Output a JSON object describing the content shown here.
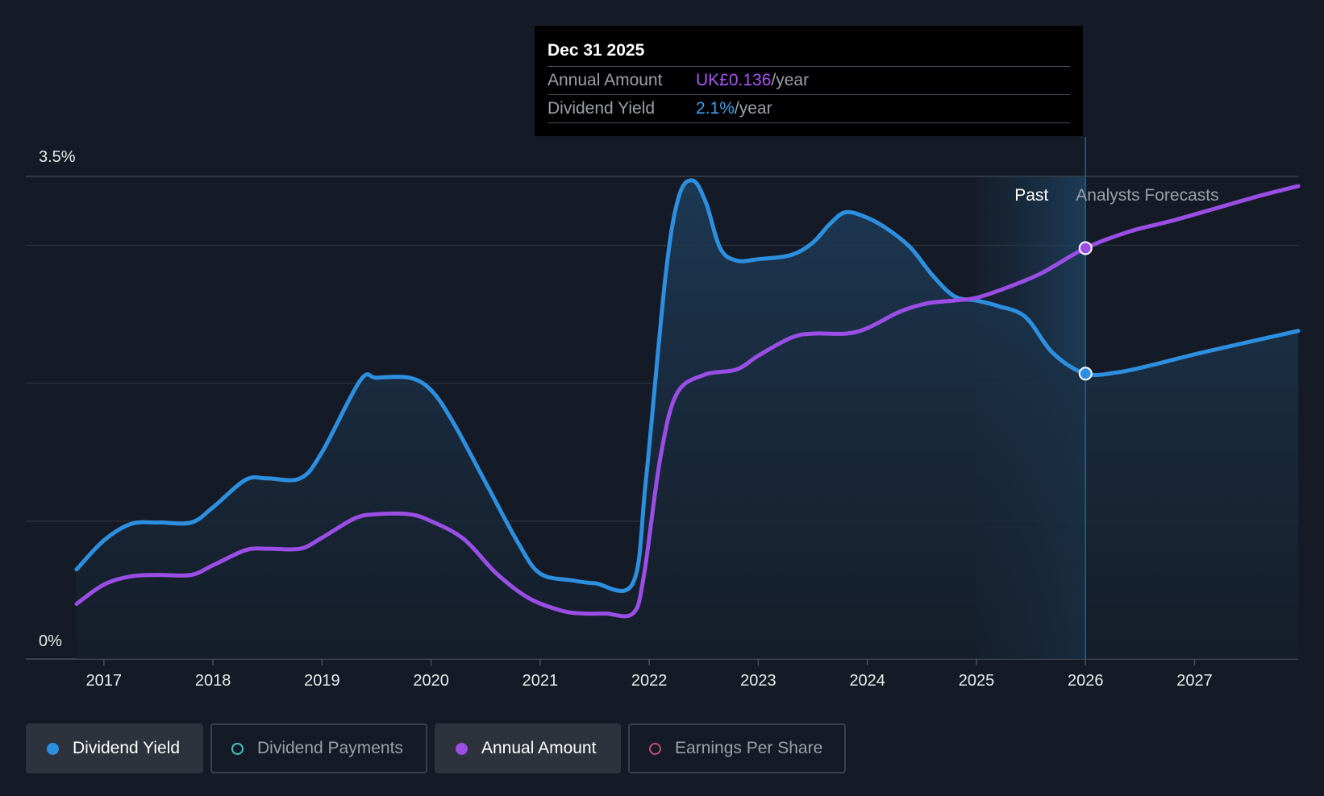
{
  "chart_data": {
    "type": "line",
    "title": "",
    "y_axis": {
      "top_label": "3.5%",
      "bottom_label": "0%",
      "range": [
        0,
        3.5
      ]
    },
    "x_axis": {
      "range": [
        2016.75,
        2027.95
      ],
      "tick_labels": [
        "2017",
        "2018",
        "2019",
        "2020",
        "2021",
        "2022",
        "2023",
        "2024",
        "2025",
        "2026",
        "2027"
      ],
      "tick_values": [
        2017,
        2018,
        2019,
        2020,
        2021,
        2022,
        2023,
        2024,
        2025,
        2026,
        2027
      ]
    },
    "regions": {
      "past_label": "Past",
      "forecast_label": "Analysts Forecasts",
      "past_start": 2025.0,
      "divider": 2026.0
    },
    "series": [
      {
        "name": "Dividend Yield",
        "color": "#2d8fe0",
        "fill": true,
        "points": [
          [
            2016.75,
            0.65
          ],
          [
            2017.0,
            0.86
          ],
          [
            2017.25,
            0.98
          ],
          [
            2017.5,
            0.99
          ],
          [
            2017.8,
            0.99
          ],
          [
            2018.0,
            1.1
          ],
          [
            2018.3,
            1.3
          ],
          [
            2018.5,
            1.31
          ],
          [
            2018.8,
            1.31
          ],
          [
            2019.0,
            1.5
          ],
          [
            2019.35,
            2.02
          ],
          [
            2019.5,
            2.04
          ],
          [
            2019.8,
            2.04
          ],
          [
            2020.0,
            1.95
          ],
          [
            2020.2,
            1.72
          ],
          [
            2020.5,
            1.28
          ],
          [
            2020.8,
            0.84
          ],
          [
            2021.0,
            0.62
          ],
          [
            2021.3,
            0.57
          ],
          [
            2021.5,
            0.55
          ],
          [
            2021.85,
            0.55
          ],
          [
            2021.97,
            1.3
          ],
          [
            2022.15,
            2.78
          ],
          [
            2022.27,
            3.35
          ],
          [
            2022.4,
            3.47
          ],
          [
            2022.52,
            3.31
          ],
          [
            2022.65,
            2.98
          ],
          [
            2022.8,
            2.89
          ],
          [
            2023.0,
            2.9
          ],
          [
            2023.3,
            2.93
          ],
          [
            2023.5,
            3.02
          ],
          [
            2023.65,
            3.15
          ],
          [
            2023.8,
            3.24
          ],
          [
            2024.0,
            3.2
          ],
          [
            2024.2,
            3.11
          ],
          [
            2024.4,
            2.98
          ],
          [
            2024.6,
            2.78
          ],
          [
            2024.8,
            2.63
          ],
          [
            2025.0,
            2.6
          ],
          [
            2025.2,
            2.56
          ],
          [
            2025.45,
            2.48
          ],
          [
            2025.7,
            2.22
          ],
          [
            2026.0,
            2.07
          ],
          [
            2026.3,
            2.08
          ],
          [
            2026.6,
            2.13
          ],
          [
            2027.0,
            2.21
          ],
          [
            2027.5,
            2.3
          ],
          [
            2027.95,
            2.38
          ]
        ]
      },
      {
        "name": "Annual Amount",
        "color": "#9b4ee6",
        "fill": false,
        "points": [
          [
            2016.75,
            0.4
          ],
          [
            2017.0,
            0.54
          ],
          [
            2017.25,
            0.6
          ],
          [
            2017.5,
            0.61
          ],
          [
            2017.8,
            0.61
          ],
          [
            2018.0,
            0.68
          ],
          [
            2018.3,
            0.79
          ],
          [
            2018.5,
            0.8
          ],
          [
            2018.8,
            0.8
          ],
          [
            2019.0,
            0.88
          ],
          [
            2019.3,
            1.02
          ],
          [
            2019.5,
            1.05
          ],
          [
            2019.8,
            1.05
          ],
          [
            2020.0,
            1.0
          ],
          [
            2020.3,
            0.87
          ],
          [
            2020.6,
            0.62
          ],
          [
            2020.9,
            0.44
          ],
          [
            2021.2,
            0.35
          ],
          [
            2021.4,
            0.33
          ],
          [
            2021.6,
            0.33
          ],
          [
            2021.85,
            0.33
          ],
          [
            2021.95,
            0.6
          ],
          [
            2022.1,
            1.45
          ],
          [
            2022.25,
            1.92
          ],
          [
            2022.5,
            2.06
          ],
          [
            2022.8,
            2.1
          ],
          [
            2023.0,
            2.2
          ],
          [
            2023.3,
            2.33
          ],
          [
            2023.5,
            2.36
          ],
          [
            2023.8,
            2.36
          ],
          [
            2024.0,
            2.4
          ],
          [
            2024.3,
            2.52
          ],
          [
            2024.55,
            2.58
          ],
          [
            2024.8,
            2.6
          ],
          [
            2025.0,
            2.62
          ],
          [
            2025.3,
            2.7
          ],
          [
            2025.6,
            2.8
          ],
          [
            2026.0,
            2.98
          ],
          [
            2026.4,
            3.1
          ],
          [
            2026.8,
            3.18
          ],
          [
            2027.2,
            3.27
          ],
          [
            2027.6,
            3.36
          ],
          [
            2027.95,
            3.43
          ]
        ]
      }
    ],
    "markers": [
      {
        "series": "Dividend Yield",
        "x": 2026.0,
        "y": 2.07,
        "color": "#2d8fe0"
      },
      {
        "series": "Annual Amount",
        "x": 2026.0,
        "y": 2.98,
        "color": "#9b4ee6"
      }
    ]
  },
  "tooltip": {
    "date": "Dec 31 2025",
    "rows": [
      {
        "label": "Annual Amount",
        "value": "UK£0.136",
        "unit": "/year"
      },
      {
        "label": "Dividend Yield",
        "value": "2.1%",
        "unit": "/year"
      }
    ]
  },
  "legend": [
    {
      "label": "Dividend Yield",
      "active": true,
      "color": "#2d8fe0"
    },
    {
      "label": "Dividend Payments",
      "active": false,
      "color": "#3fc7c0"
    },
    {
      "label": "Annual Amount",
      "active": true,
      "color": "#9b4ee6"
    },
    {
      "label": "Earnings Per Share",
      "active": false,
      "color": "#c24b7a"
    }
  ]
}
